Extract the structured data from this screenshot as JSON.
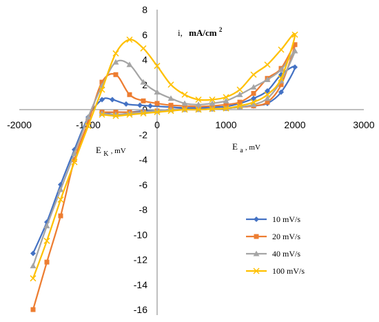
{
  "chart_data": {
    "type": "line",
    "x_axis": {
      "min": -2000,
      "max": 3000,
      "ticks": [
        -2000,
        -1000,
        0,
        1000,
        2000,
        3000
      ]
    },
    "y_axis": {
      "min": -16,
      "max": 8,
      "ticks": [
        -16,
        -14,
        -12,
        -10,
        -8,
        -6,
        -4,
        -2,
        0,
        2,
        4,
        6,
        8
      ]
    },
    "axis_labels": {
      "y_current": {
        "main": "i,",
        "unit": "mA/cm",
        "superscript": "2"
      },
      "x_anodic": {
        "main": "E",
        "sub": "a",
        "unit": ", mV"
      },
      "x_cathodic": {
        "main": "E",
        "sub": "K",
        "unit": ", mV"
      }
    },
    "legend": {
      "position": "bottom-right"
    },
    "series": [
      {
        "name": "10 mV/s",
        "color": "#4472c4",
        "marker": "diamond",
        "x": [
          -1800,
          -1600,
          -1400,
          -1200,
          -1000,
          -800,
          -650,
          -450,
          -250,
          -100,
          200,
          400,
          600,
          800,
          1000,
          1200,
          1400,
          1600,
          1800,
          2000,
          1800,
          1600,
          1400,
          1200,
          1000,
          800,
          600,
          400,
          200,
          0,
          -200,
          -400,
          -600,
          -800
        ],
        "y": [
          -11.5,
          -9.0,
          -6.0,
          -3.2,
          -0.6,
          0.8,
          0.8,
          0.45,
          0.35,
          0.3,
          0.2,
          0.15,
          0.15,
          0.2,
          0.25,
          0.5,
          0.9,
          1.5,
          2.8,
          3.4,
          1.4,
          0.5,
          0.3,
          0.2,
          0.1,
          0.05,
          0.05,
          0.05,
          0.0,
          -0.1,
          -0.1,
          -0.2,
          -0.2,
          -0.3
        ]
      },
      {
        "name": "20 mV/s",
        "color": "#ed7d31",
        "marker": "square",
        "x": [
          -1800,
          -1600,
          -1400,
          -1200,
          -1000,
          -800,
          -600,
          -400,
          -200,
          0,
          200,
          400,
          600,
          800,
          1000,
          1200,
          1400,
          1600,
          1800,
          2000,
          1800,
          1600,
          1400,
          1200,
          1000,
          800,
          600,
          400,
          200,
          0,
          -200,
          -400,
          -600,
          -800
        ],
        "y": [
          -16.0,
          -12.2,
          -8.5,
          -4.0,
          -1.0,
          2.2,
          2.8,
          1.2,
          0.7,
          0.5,
          0.35,
          0.3,
          0.25,
          0.3,
          0.4,
          0.6,
          1.3,
          2.5,
          3.3,
          5.2,
          2.0,
          0.6,
          0.3,
          0.2,
          0.1,
          0.05,
          0.0,
          0.0,
          0.0,
          -0.1,
          -0.2,
          -0.2,
          -0.2,
          -0.2
        ]
      },
      {
        "name": "40 mV/s",
        "color": "#a5a5a5",
        "marker": "triangle",
        "x": [
          -1800,
          -1600,
          -1400,
          -1200,
          -1000,
          -800,
          -600,
          -400,
          -200,
          0,
          200,
          400,
          600,
          800,
          1000,
          1200,
          1400,
          1600,
          1800,
          2000,
          1800,
          1600,
          1400,
          1200,
          1000,
          800,
          600,
          400,
          200,
          0,
          -200,
          -400,
          -600,
          -800
        ],
        "y": [
          -12.5,
          -9.3,
          -6.4,
          -3.5,
          -0.6,
          1.9,
          3.8,
          3.6,
          2.2,
          1.4,
          0.9,
          0.5,
          0.4,
          0.5,
          0.7,
          1.2,
          1.8,
          2.4,
          3.2,
          4.7,
          2.3,
          0.9,
          0.4,
          0.2,
          0.1,
          0.05,
          0.0,
          0.0,
          0.0,
          -0.1,
          -0.2,
          -0.3,
          -0.4,
          -0.3
        ]
      },
      {
        "name": "100 mV/s",
        "color": "#ffc000",
        "marker": "x",
        "x": [
          -1800,
          -1600,
          -1400,
          -1200,
          -1000,
          -800,
          -600,
          -400,
          -200,
          0,
          200,
          400,
          600,
          800,
          1000,
          1200,
          1400,
          1600,
          1800,
          2000,
          1800,
          1600,
          1400,
          1200,
          1000,
          800,
          600,
          400,
          200,
          0,
          -200,
          -400,
          -600,
          -800
        ],
        "y": [
          -13.5,
          -10.5,
          -7.2,
          -4.2,
          -1.3,
          1.6,
          4.5,
          5.6,
          4.9,
          3.5,
          2.0,
          1.2,
          0.8,
          0.8,
          1.0,
          1.6,
          2.8,
          3.6,
          4.8,
          6.0,
          2.5,
          1.2,
          0.6,
          0.3,
          0.1,
          0.05,
          0.0,
          0.0,
          -0.1,
          -0.2,
          -0.3,
          -0.4,
          -0.5,
          -0.4
        ]
      }
    ]
  }
}
